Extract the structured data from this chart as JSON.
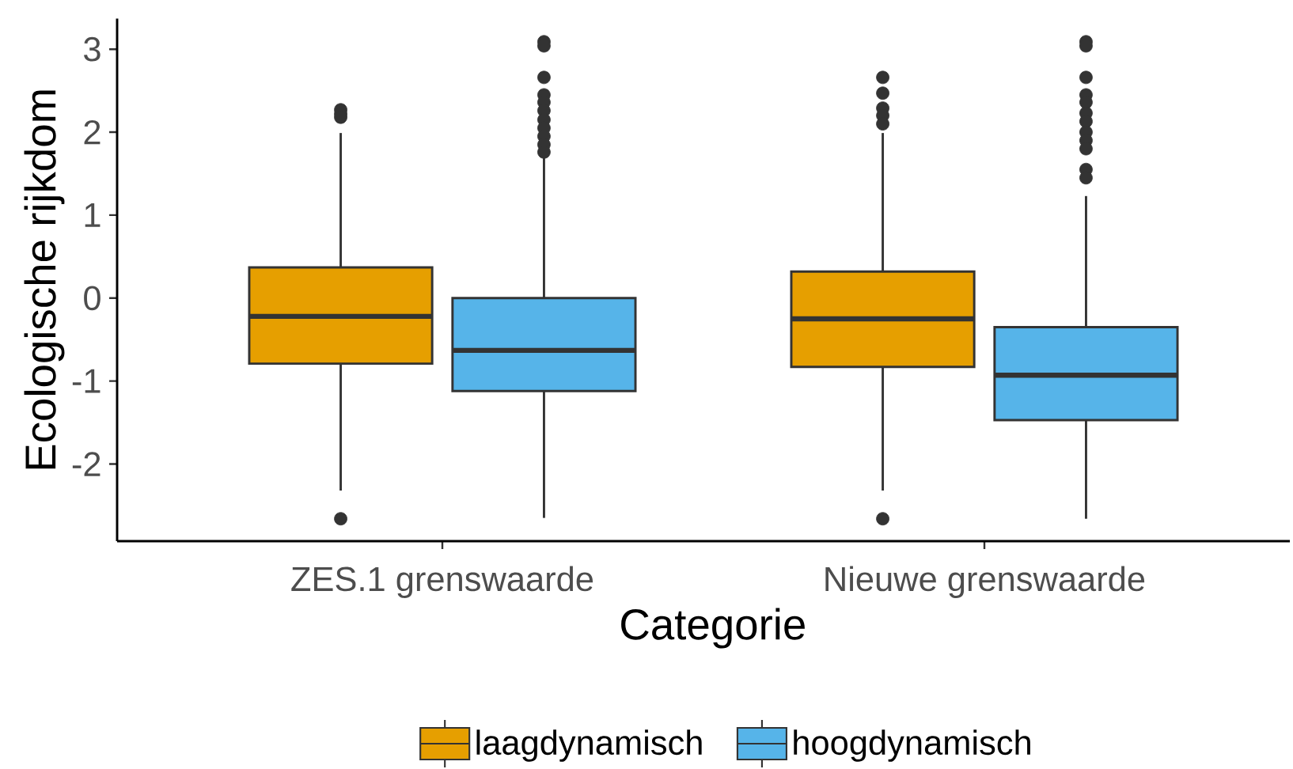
{
  "chart_data": {
    "type": "box",
    "xlabel": "Categorie",
    "ylabel": "Ecologische rijkdom",
    "categories": [
      "ZES.1 grenswaarde",
      "Nieuwe grenswaarde"
    ],
    "series": [
      {
        "name": "laagdynamisch",
        "color": "#e69f00",
        "boxes": [
          {
            "low": -2.32,
            "q1": -0.79,
            "median": -0.22,
            "q3": 0.37,
            "high": 1.99,
            "outliers": [
              2.27,
              2.22,
              2.18,
              -2.66
            ]
          },
          {
            "low": -2.32,
            "q1": -0.83,
            "median": -0.25,
            "q3": 0.32,
            "high": 1.99,
            "outliers": [
              2.66,
              2.47,
              2.29,
              2.2,
              2.1,
              -2.66
            ]
          }
        ]
      },
      {
        "name": "hoogdynamisch",
        "color": "#56b4e9",
        "boxes": [
          {
            "low": -2.65,
            "q1": -1.12,
            "median": -0.63,
            "q3": 0.0,
            "high": 1.7,
            "outliers": [
              3.09,
              3.04,
              2.66,
              2.45,
              2.36,
              2.26,
              2.15,
              2.05,
              1.95,
              1.85,
              1.76
            ]
          },
          {
            "low": -2.66,
            "q1": -1.47,
            "median": -0.93,
            "q3": -0.35,
            "high": 1.23,
            "outliers": [
              3.09,
              3.04,
              2.66,
              2.45,
              2.36,
              2.23,
              2.13,
              2.0,
              1.9,
              1.8,
              1.55,
              1.45
            ]
          }
        ]
      }
    ],
    "ylim": [
      -2.93,
      3.37
    ],
    "yticks": [
      -2,
      -1,
      0,
      1,
      2,
      3
    ],
    "legend": "bottom",
    "marker": "circle"
  }
}
